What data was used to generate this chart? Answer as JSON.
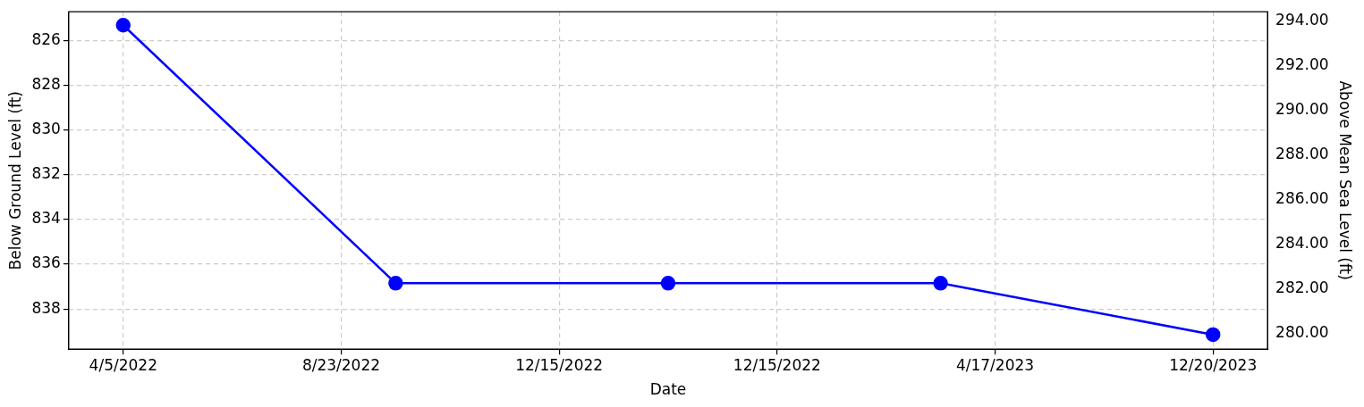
{
  "chart_data": {
    "type": "line",
    "xlabel": "Date",
    "ylabel": "Below Ground Level (ft)",
    "y2label": "Above Mean Sea Level (ft)",
    "categories": [
      null,
      "4/5/2022",
      null,
      null,
      null,
      "8/23/2022",
      null,
      null,
      null,
      "12/15/2022",
      null,
      null,
      null,
      "12/15/2022",
      null,
      null,
      null,
      "4/17/2023",
      null,
      null,
      null,
      "12/20/2023",
      null
    ],
    "series": [
      {
        "color": "#0000ff",
        "values": [
          null,
          825.3,
          null,
          null,
          null,
          null,
          836.85,
          null,
          null,
          null,
          null,
          836.85,
          null,
          null,
          null,
          null,
          836.85,
          null,
          null,
          null,
          null,
          839.15,
          null
        ]
      }
    ],
    "ylim": [
      839.8,
      824.7
    ],
    "yticks": [
      826,
      828,
      830,
      832,
      834,
      836,
      838
    ],
    "y2lim": [
      279.3,
      294.4
    ],
    "y2ticks": [
      {
        "value": 280,
        "label": "280.00"
      },
      {
        "value": 282,
        "label": "282.00"
      },
      {
        "value": 284,
        "label": "284.00"
      },
      {
        "value": 286,
        "label": "286.00"
      },
      {
        "value": 288,
        "label": "288.00"
      },
      {
        "value": 290,
        "label": "290.00"
      },
      {
        "value": 292,
        "label": "292.00"
      },
      {
        "value": 294,
        "label": "294.00"
      }
    ],
    "grid": true,
    "marker": "circle",
    "line_style": "solid",
    "legend": false
  }
}
